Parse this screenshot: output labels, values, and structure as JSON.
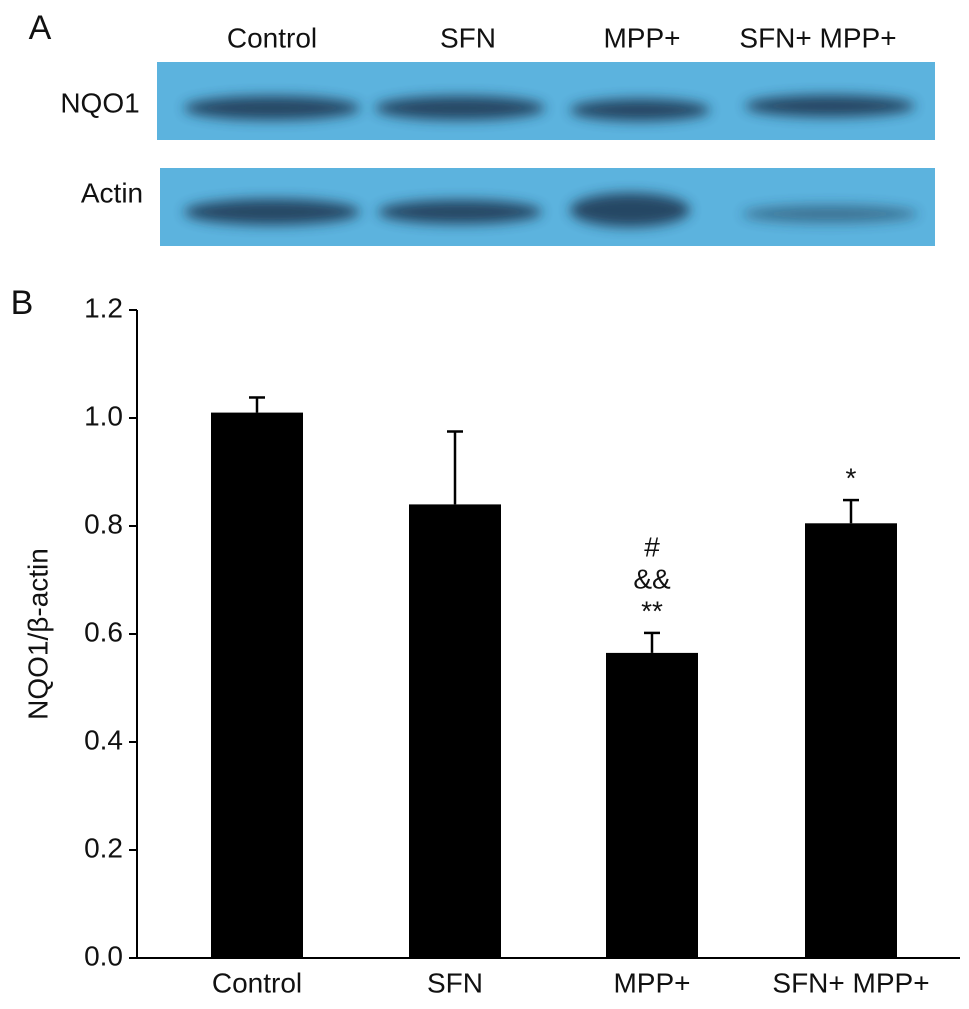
{
  "blot": {
    "panel_label": "A",
    "lanes": [
      "Control",
      "SFN",
      "MPP+",
      "SFN+ MPP+"
    ],
    "rows": [
      "NQO1",
      "Actin"
    ]
  },
  "chart_data": {
    "type": "bar",
    "panel_label": "B",
    "y_label": "NQO1/β-actin",
    "categories": [
      "Control",
      "SFN",
      "MPP+",
      "SFN+ MPP+"
    ],
    "values": [
      1.01,
      0.84,
      0.565,
      0.805
    ],
    "errors": [
      0.028,
      0.135,
      0.037,
      0.043
    ],
    "annotations": [
      [],
      [],
      [
        "#",
        "&&",
        "**"
      ],
      [
        "*"
      ]
    ],
    "color": "#000000",
    "ylim": [
      0,
      1.2
    ],
    "yticks": [
      {
        "value": 0,
        "label": "0.0"
      },
      0.2,
      0.4,
      0.6,
      0.8,
      {
        "value": 1,
        "label": "1.0"
      },
      {
        "value": 1.2,
        "label": "1.2"
      }
    ],
    "grid": false
  }
}
